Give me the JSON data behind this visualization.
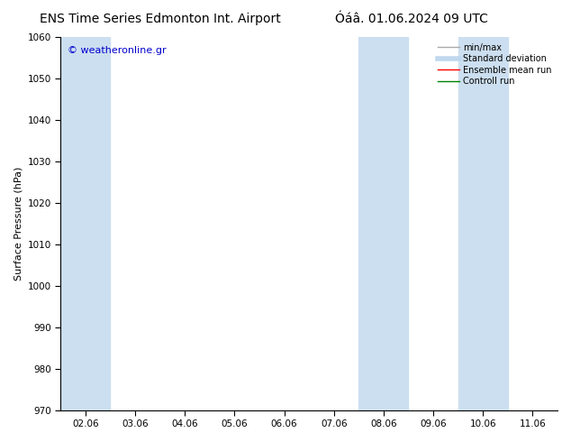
{
  "title_left": "ENS Time Series Edmonton Int. Airport",
  "title_right": "Óáâ. 01.06.2024 09 UTC",
  "ylabel": "Surface Pressure (hPa)",
  "ylim": [
    970,
    1060
  ],
  "yticks": [
    970,
    980,
    990,
    1000,
    1010,
    1020,
    1030,
    1040,
    1050,
    1060
  ],
  "x_labels": [
    "02.06",
    "03.06",
    "04.06",
    "05.06",
    "06.06",
    "07.06",
    "08.06",
    "09.06",
    "10.06",
    "11.06"
  ],
  "shaded_bands": [
    {
      "x_start": "2024-06-02",
      "x_end": "2024-06-03",
      "color": "#ccdff0"
    },
    {
      "x_start": "2024-06-08",
      "x_end": "2024-06-09",
      "color": "#ccdff0"
    },
    {
      "x_start": "2024-06-10",
      "x_end": "2024-06-11",
      "color": "#ccdff0"
    }
  ],
  "x_start": "2024-06-02",
  "x_end": "2024-06-11",
  "watermark": "© weatheronline.gr",
  "watermark_color": "#0000cc",
  "legend_entries": [
    {
      "label": "min/max",
      "color": "#aaaaaa",
      "lw": 1.0,
      "linestyle": "-"
    },
    {
      "label": "Standard deviation",
      "color": "#c0d8ee",
      "lw": 4,
      "linestyle": "-"
    },
    {
      "label": "Ensemble mean run",
      "color": "#ff0000",
      "lw": 1.0,
      "linestyle": "-"
    },
    {
      "label": "Controll run",
      "color": "#008000",
      "lw": 1.0,
      "linestyle": "-"
    }
  ],
  "background_color": "#ffffff",
  "plot_bg_color": "#ffffff",
  "border_color": "#000000",
  "tick_color": "#000000",
  "title_fontsize": 10,
  "axis_label_fontsize": 8,
  "tick_fontsize": 7.5
}
